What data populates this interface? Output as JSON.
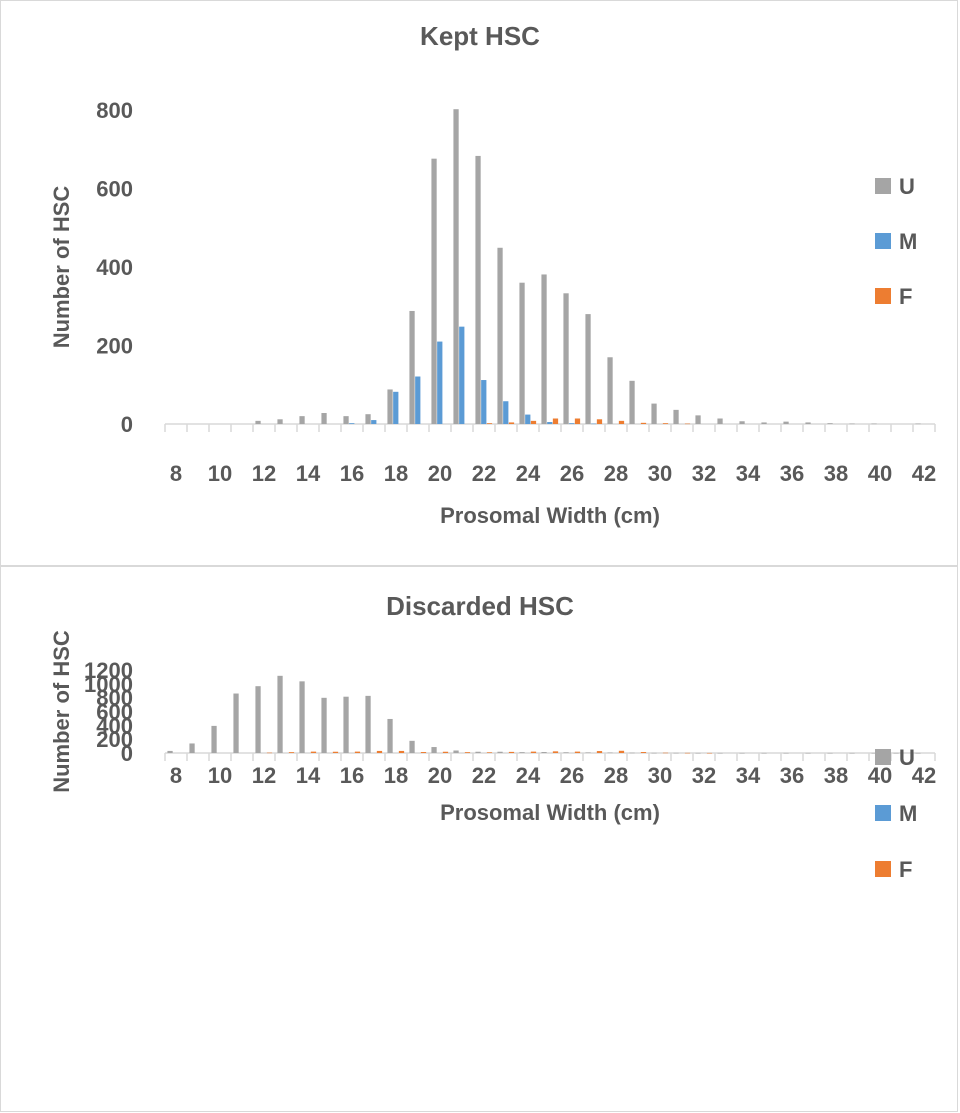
{
  "colors": {
    "U": "#a5a5a5",
    "M": "#5b9bd5",
    "F": "#ed7d31",
    "axis": "#d9d9d9",
    "text": "#595959"
  },
  "chart_data": [
    {
      "type": "bar",
      "title": "Kept HSC",
      "xlabel": "Prosomal Width (cm)",
      "ylabel": "Number of HSC",
      "ylim": [
        0,
        800
      ],
      "yticks": [
        "0",
        "200",
        "400",
        "600",
        "800"
      ],
      "grid": false,
      "legend_position": "right",
      "categories": [
        "8",
        "9",
        "10",
        "11",
        "12",
        "13",
        "14",
        "15",
        "16",
        "17",
        "18",
        "19",
        "20",
        "21",
        "22",
        "23",
        "24",
        "25",
        "26",
        "27",
        "28",
        "29",
        "30",
        "31",
        "32",
        "33",
        "34",
        "35",
        "36",
        "37",
        "38",
        "39",
        "40",
        "41",
        "42"
      ],
      "xtick_labels": [
        "8",
        "10",
        "12",
        "14",
        "16",
        "18",
        "20",
        "22",
        "24",
        "26",
        "28",
        "30",
        "32",
        "34",
        "36",
        "38",
        "40",
        "42"
      ],
      "series": [
        {
          "name": "U",
          "values": [
            0,
            0,
            0,
            0,
            8,
            12,
            20,
            28,
            20,
            25,
            88,
            288,
            676,
            802,
            683,
            449,
            360,
            381,
            333,
            280,
            170,
            110,
            52,
            36,
            22,
            14,
            7,
            4,
            6,
            4,
            2,
            1,
            1,
            0,
            1
          ]
        },
        {
          "name": "M",
          "values": [
            0,
            0,
            0,
            0,
            0,
            0,
            0,
            0,
            2,
            10,
            82,
            121,
            210,
            248,
            112,
            58,
            24,
            5,
            2,
            1,
            0,
            0,
            0,
            0,
            0,
            0,
            0,
            0,
            0,
            0,
            0,
            0,
            0,
            0,
            0
          ]
        },
        {
          "name": "F",
          "values": [
            0,
            0,
            0,
            0,
            0,
            0,
            0,
            0,
            0,
            0,
            0,
            0,
            0,
            0,
            2,
            4,
            8,
            14,
            14,
            12,
            8,
            3,
            2,
            1,
            0,
            0,
            0,
            0,
            0,
            0,
            0,
            0,
            0,
            0,
            0
          ]
        }
      ]
    },
    {
      "type": "bar",
      "title": "Discarded HSC",
      "xlabel": "Prosomal Width (cm)",
      "ylabel": "Number of HSC",
      "ylim": [
        0,
        1200
      ],
      "yticks": [
        "0",
        "200",
        "400",
        "600",
        "800",
        "1000",
        "1200"
      ],
      "grid": false,
      "legend_position": "right",
      "categories": [
        "8",
        "9",
        "10",
        "11",
        "12",
        "13",
        "14",
        "15",
        "16",
        "17",
        "18",
        "19",
        "20",
        "21",
        "22",
        "23",
        "24",
        "25",
        "26",
        "27",
        "28",
        "29",
        "30",
        "31",
        "32",
        "33",
        "34",
        "35",
        "36",
        "37",
        "38",
        "39",
        "40",
        "41",
        "42"
      ],
      "xtick_labels": [
        "8",
        "10",
        "12",
        "14",
        "16",
        "18",
        "20",
        "22",
        "24",
        "26",
        "28",
        "30",
        "32",
        "34",
        "36",
        "38",
        "40",
        "42"
      ],
      "series": [
        {
          "name": "U",
          "values": [
            30,
            138,
            392,
            860,
            966,
            1116,
            1036,
            798,
            814,
            826,
            492,
            176,
            86,
            36,
            18,
            18,
            12,
            14,
            10,
            8,
            6,
            4,
            2,
            2,
            1,
            1,
            1,
            1,
            1,
            1,
            1,
            1,
            1,
            1,
            1
          ]
        },
        {
          "name": "M",
          "values": [
            0,
            0,
            0,
            0,
            0,
            0,
            0,
            0,
            0,
            0,
            0,
            0,
            0,
            0,
            0,
            0,
            0,
            0,
            0,
            0,
            0,
            0,
            0,
            0,
            0,
            0,
            0,
            0,
            0,
            0,
            0,
            0,
            0,
            0,
            0
          ]
        },
        {
          "name": "F",
          "values": [
            0,
            0,
            0,
            0,
            5,
            12,
            20,
            18,
            20,
            30,
            30,
            14,
            18,
            12,
            10,
            16,
            20,
            24,
            20,
            28,
            32,
            14,
            4,
            2,
            1,
            0,
            0,
            0,
            0,
            0,
            0,
            0,
            0,
            0,
            0
          ]
        }
      ]
    }
  ]
}
